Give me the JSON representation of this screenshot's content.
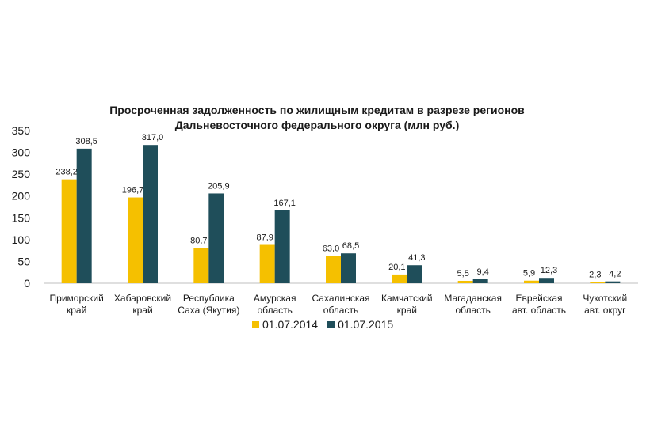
{
  "chart_data": {
    "type": "bar",
    "title_lines": [
      "Просроченная задолженность по жилищным кредитам в разрезе регионов",
      "Дальневосточного федерального округа (млн руб.)"
    ],
    "xlabel": "",
    "ylabel": "",
    "ylim": [
      0,
      350
    ],
    "yticks": [
      "0",
      "50",
      "100",
      "150",
      "200",
      "250",
      "300",
      "350"
    ],
    "ytick_values": [
      0,
      50,
      100,
      150,
      200,
      250,
      300,
      350
    ],
    "grid": false,
    "legend_position": "bottom",
    "categories": [
      [
        "Приморский",
        "край"
      ],
      [
        "Хабаровский",
        "край"
      ],
      [
        "Республика",
        "Саха (Якутия)"
      ],
      [
        "Амурская",
        "область"
      ],
      [
        "Сахалинская",
        "область"
      ],
      [
        "Камчатский",
        "край"
      ],
      [
        "Магаданская",
        "область"
      ],
      [
        "Еврейская",
        "авт. область"
      ],
      [
        "Чукотский",
        "авт. округ"
      ]
    ],
    "series": [
      {
        "name": "01.07.2014",
        "color": "#f5c000",
        "values": [
          238.2,
          196.7,
          80.7,
          87.9,
          63.0,
          20.1,
          5.5,
          5.9,
          2.3
        ],
        "labels": [
          "238,2",
          "196,7",
          "80,7",
          "87,9",
          "63,0",
          "20,1",
          "5,5",
          "5,9",
          "2,3"
        ]
      },
      {
        "name": "01.07.2015",
        "color": "#1f4e5a",
        "values": [
          308.5,
          317.0,
          205.9,
          167.1,
          68.5,
          41.3,
          9.4,
          12.3,
          4.2
        ],
        "labels": [
          "308,5",
          "317,0",
          "205,9",
          "167,1",
          "68,5",
          "41,3",
          "9,4",
          "12,3",
          "4,2"
        ]
      }
    ]
  }
}
